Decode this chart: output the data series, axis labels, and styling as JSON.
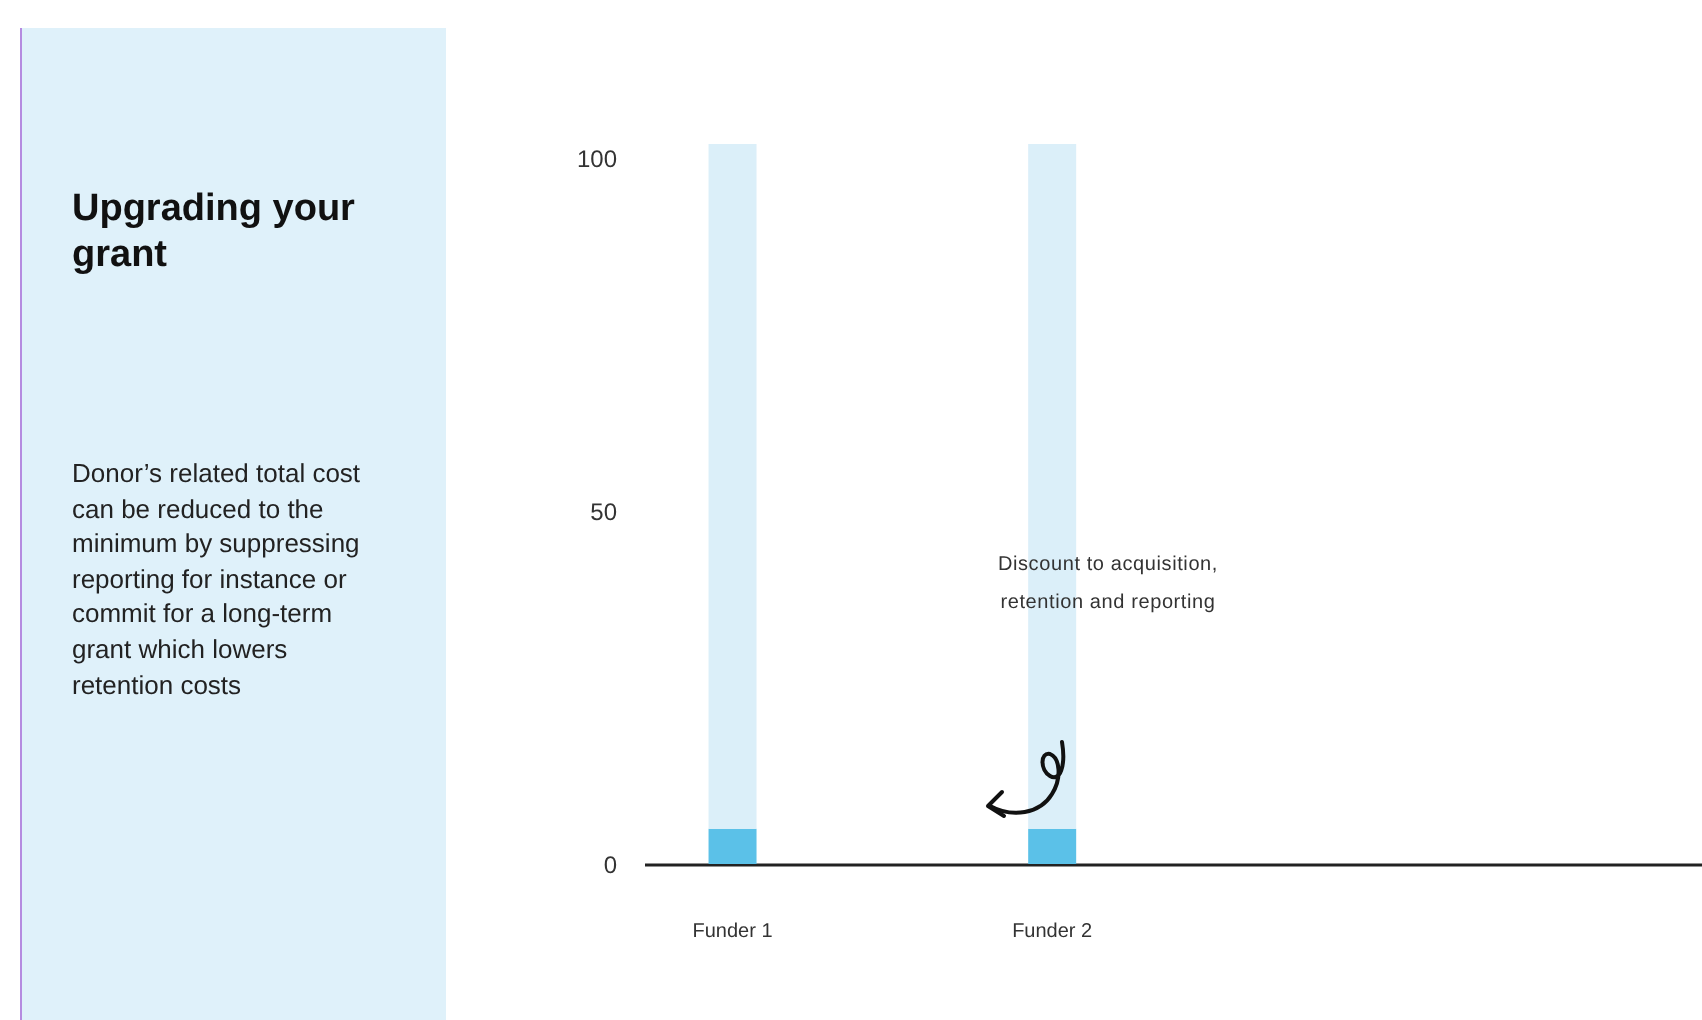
{
  "chart_data": {
    "type": "bar",
    "stacked": true,
    "title": "Upgrading your grant",
    "subtitle": "Donor’s related total cost can be reduced to the minimum by suppressing reporting for instance or commit for a long-term grant which lowers retention costs",
    "annotations": [
      "Discount to acquisition, retention and reporting"
    ],
    "categories": [
      "Funder 1",
      "Funder 2"
    ],
    "series": [
      {
        "color": "#5bc1e8",
        "values": [
          5,
          5
        ]
      },
      {
        "color": "#dbeff9",
        "values": [
          97,
          97
        ]
      }
    ],
    "ylim": [
      0,
      102
    ],
    "yticks": [
      0,
      50,
      100
    ]
  }
}
